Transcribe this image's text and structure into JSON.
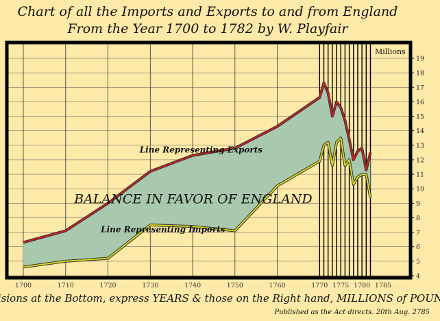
{
  "chart_data": {
    "type": "area",
    "title": "Chart of all the Imports and Exports to and from England",
    "subtitle": "From the Year 1700 to 1782 by W. Playfair",
    "ylabel": "Millions",
    "xlim": [
      1700,
      1785
    ],
    "ylim": [
      4,
      19
    ],
    "x_ticks": [
      1700,
      1710,
      1720,
      1730,
      1740,
      1750,
      1760,
      1770,
      1775,
      1780,
      1785
    ],
    "y_ticks": [
      4,
      5,
      6,
      7,
      8,
      9,
      10,
      11,
      12,
      13,
      14,
      15,
      16,
      17,
      18,
      19
    ],
    "y_axis_position": "right",
    "grid": true,
    "series": [
      {
        "name": "Line Representing Exports",
        "color": "#cc2222",
        "x": [
          1700,
          1710,
          1720,
          1730,
          1740,
          1750,
          1760,
          1770,
          1771,
          1772,
          1773,
          1774,
          1775,
          1776,
          1777,
          1778,
          1779,
          1780,
          1781,
          1782
        ],
        "y": [
          6.3,
          7.1,
          9.0,
          11.2,
          12.3,
          12.8,
          14.3,
          16.3,
          17.3,
          16.6,
          15.0,
          16.0,
          15.6,
          14.7,
          13.4,
          12.0,
          12.6,
          12.8,
          11.3,
          12.5
        ]
      },
      {
        "name": "Line Representing Imports",
        "color": "#d8d820",
        "x": [
          1700,
          1710,
          1720,
          1730,
          1740,
          1750,
          1760,
          1770,
          1771,
          1772,
          1773,
          1774,
          1775,
          1776,
          1777,
          1778,
          1779,
          1780,
          1781,
          1782
        ],
        "y": [
          4.6,
          5.0,
          5.2,
          7.5,
          7.4,
          7.1,
          10.2,
          11.9,
          13.0,
          13.2,
          11.6,
          13.2,
          13.5,
          11.6,
          12.0,
          10.3,
          10.8,
          11.0,
          11.0,
          9.4
        ]
      }
    ],
    "fill_color": "#a9c9ae",
    "annotations": [
      {
        "text": "Line Representing Exports",
        "x": 1742,
        "y": 12.5
      },
      {
        "text": "BALANCE IN FAVOR OF ENGLAND",
        "x": 1712,
        "y": 9.0
      },
      {
        "text": "Line Representing Imports",
        "x": 1733,
        "y": 7.0
      }
    ],
    "footer": "Divisions at the Bottom, express YEARS & those on the Right hand, MILLIONS of POUNDS",
    "published": "Published as the Act directs. 20th Aug. 2785"
  }
}
